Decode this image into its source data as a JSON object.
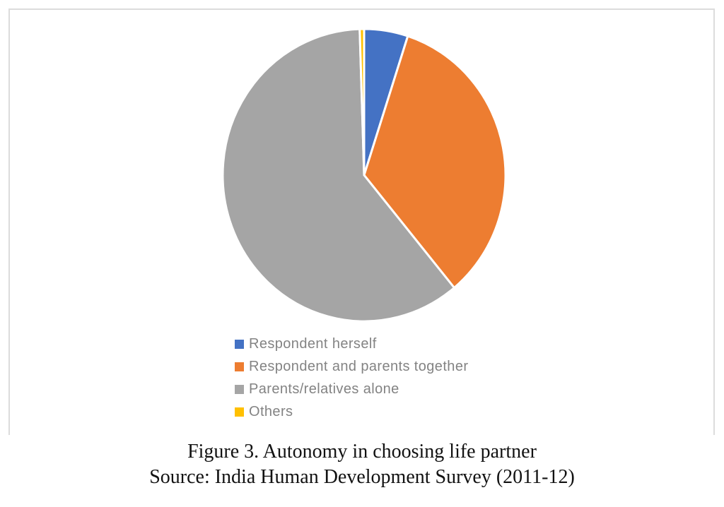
{
  "figure": {
    "caption_line1": "Figure 3. Autonomy in choosing life partner",
    "caption_line2": "Source: India Human Development Survey (2011-12)"
  },
  "chart_data": {
    "type": "pie",
    "title": "",
    "categories": [
      "Respondent herself",
      "Respondent and parents together",
      "Parents/relatives alone",
      "Others"
    ],
    "values": [
      5,
      34,
      60.5,
      0.5
    ],
    "unit": "percent",
    "colors": [
      "#4472C4",
      "#ED7D31",
      "#A5A5A5",
      "#FFC000"
    ],
    "start_angle_deg": 0,
    "direction": "clockwise",
    "slice_border_color": "#FFFFFF",
    "slice_border_width": 3,
    "legend_position": "bottom-left",
    "grid": "off"
  },
  "legend": {
    "items": [
      {
        "label": "Respondent herself",
        "color": "#4472C4"
      },
      {
        "label": "Respondent and parents together",
        "color": "#ED7D31"
      },
      {
        "label": "Parents/relatives alone",
        "color": "#A5A5A5"
      },
      {
        "label": "Others",
        "color": "#FFC000"
      }
    ]
  }
}
